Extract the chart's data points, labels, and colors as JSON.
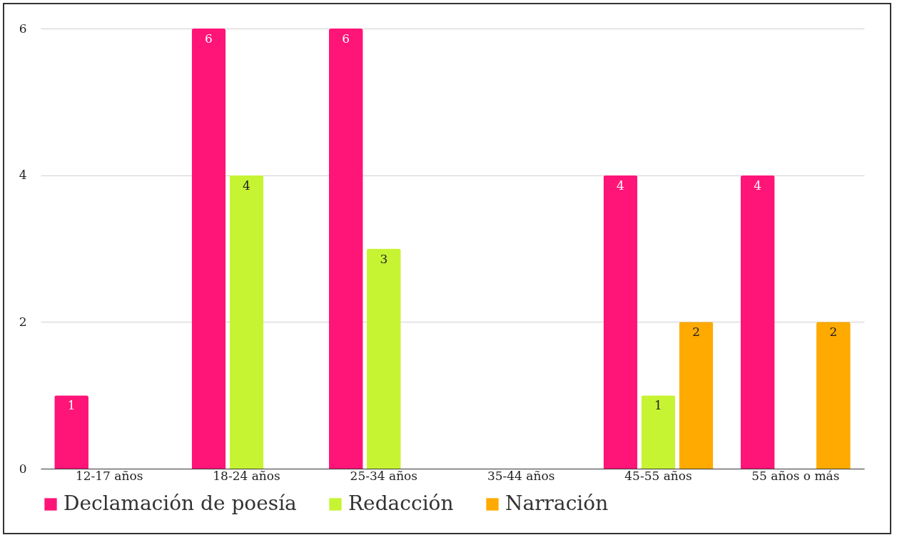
{
  "chart_data": {
    "type": "bar",
    "categories": [
      "12-17 años",
      "18-24 años",
      "25-34 años",
      "35-44 años",
      "45-55 años",
      "55 años o más"
    ],
    "series": [
      {
        "name": "Declamación de poesía",
        "color": "#ff1478",
        "values": [
          1,
          6,
          6,
          null,
          4,
          4
        ]
      },
      {
        "name": "Redacción",
        "color": "#c6f432",
        "values": [
          null,
          4,
          3,
          null,
          1,
          null
        ]
      },
      {
        "name": "Narración",
        "color": "#ffaa00",
        "values": [
          null,
          null,
          null,
          null,
          2,
          2
        ]
      }
    ],
    "ylim": [
      0,
      6
    ],
    "yticks": [
      0,
      2,
      4,
      6
    ],
    "grid": "y",
    "legend": "bottom",
    "data_labels": true
  }
}
